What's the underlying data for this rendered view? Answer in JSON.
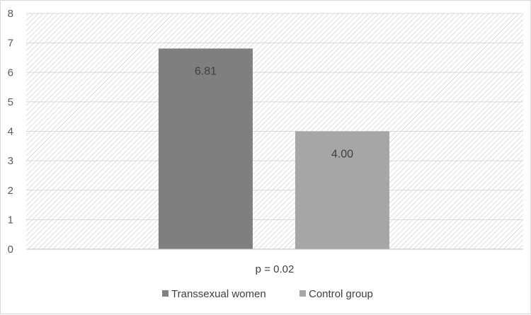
{
  "chart_data": {
    "type": "bar",
    "title": "",
    "xlabel": "",
    "ylabel": "",
    "category_label": "p = 0.02",
    "ylim": [
      0,
      8
    ],
    "yticks": [
      0,
      1,
      2,
      3,
      4,
      5,
      6,
      7,
      8
    ],
    "grid": "horizontal",
    "legend_position": "bottom",
    "series": [
      {
        "name": "Transsexual women",
        "value": 6.81,
        "label": "6.81",
        "color": "#7f7f7f"
      },
      {
        "name": "Control group",
        "value": 4.0,
        "label": "4.00",
        "color": "#a6a6a6"
      }
    ]
  }
}
